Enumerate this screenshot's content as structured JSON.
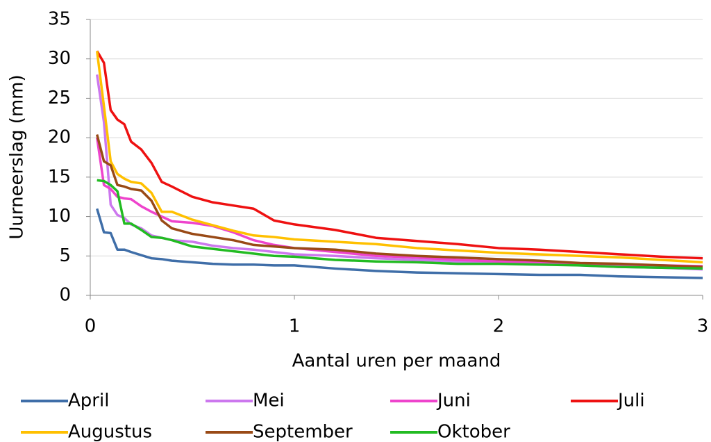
{
  "chart_data": {
    "type": "line",
    "xlabel": "Aantal uren per maand",
    "ylabel": "Uurneerslag (mm)",
    "x": [
      0.033,
      0.067,
      0.1,
      0.133,
      0.167,
      0.2,
      0.25,
      0.3,
      0.35,
      0.4,
      0.5,
      0.6,
      0.7,
      0.8,
      0.9,
      1.0,
      1.2,
      1.4,
      1.6,
      1.8,
      2.0,
      2.2,
      2.4,
      2.6,
      2.8,
      3.0
    ],
    "series": [
      {
        "name": "April",
        "color": "#3f6ea8",
        "values": [
          11,
          8,
          7.9,
          5.8,
          5.8,
          5.5,
          5.1,
          4.7,
          4.6,
          4.4,
          4.2,
          4.0,
          3.9,
          3.9,
          3.8,
          3.8,
          3.4,
          3.1,
          2.9,
          2.8,
          2.7,
          2.6,
          2.6,
          2.4,
          2.3,
          2.2
        ]
      },
      {
        "name": "Mei",
        "color": "#cc77ee",
        "values": [
          28,
          22,
          11.5,
          10.2,
          9.8,
          9.0,
          8.5,
          7.6,
          7.3,
          7.0,
          6.8,
          6.3,
          6.0,
          5.8,
          5.5,
          5.2,
          5.0,
          4.7,
          4.5,
          4.3,
          4.1,
          4.0,
          3.8,
          3.6,
          3.5,
          3.3
        ]
      },
      {
        "name": "Juni",
        "color": "#ee44cc",
        "values": [
          20,
          14,
          13.5,
          12.5,
          12.3,
          12.2,
          11.3,
          10.6,
          10.0,
          9.4,
          9.2,
          8.8,
          8.0,
          7.0,
          6.4,
          6.0,
          5.5,
          5.0,
          4.8,
          4.5,
          4.3,
          4.2,
          4.0,
          3.9,
          3.8,
          3.7
        ]
      },
      {
        "name": "Juli",
        "color": "#ee1111",
        "values": [
          31,
          29.5,
          23.5,
          22.3,
          21.7,
          19.5,
          18.5,
          16.8,
          14.4,
          13.8,
          12.5,
          11.8,
          11.4,
          11.0,
          9.5,
          9.0,
          8.3,
          7.3,
          6.9,
          6.5,
          6.0,
          5.8,
          5.5,
          5.2,
          4.9,
          4.7
        ]
      },
      {
        "name": "Augustus",
        "color": "#ffc000",
        "values": [
          31,
          24,
          17,
          15.4,
          14.8,
          14.4,
          14.2,
          13.0,
          10.6,
          10.6,
          9.6,
          8.9,
          8.2,
          7.6,
          7.4,
          7.1,
          6.8,
          6.5,
          6.0,
          5.7,
          5.4,
          5.2,
          5.0,
          4.8,
          4.5,
          4.2
        ]
      },
      {
        "name": "September",
        "color": "#994a16",
        "values": [
          20.4,
          17,
          16.5,
          14,
          13.8,
          13.5,
          13.3,
          12,
          9.5,
          8.5,
          7.8,
          7.4,
          7.0,
          6.4,
          6.2,
          6.0,
          5.8,
          5.3,
          5.0,
          4.8,
          4.6,
          4.4,
          4.1,
          4.0,
          3.8,
          3.6
        ]
      },
      {
        "name": "Oktober",
        "color": "#22bb22",
        "values": [
          14.6,
          14.5,
          14.0,
          13.2,
          9.1,
          9.1,
          8.3,
          7.4,
          7.3,
          7.0,
          6.2,
          5.9,
          5.6,
          5.3,
          5.0,
          4.9,
          4.5,
          4.3,
          4.2,
          4.0,
          4.0,
          3.9,
          3.8,
          3.6,
          3.5,
          3.4
        ]
      }
    ],
    "xlim": [
      0,
      3
    ],
    "xticks": [
      0,
      1,
      2,
      3
    ],
    "ylim": [
      0,
      35
    ],
    "yticks": [
      0,
      5,
      10,
      15,
      20,
      25,
      30,
      35
    ],
    "grid": true,
    "legend": "bottom"
  }
}
